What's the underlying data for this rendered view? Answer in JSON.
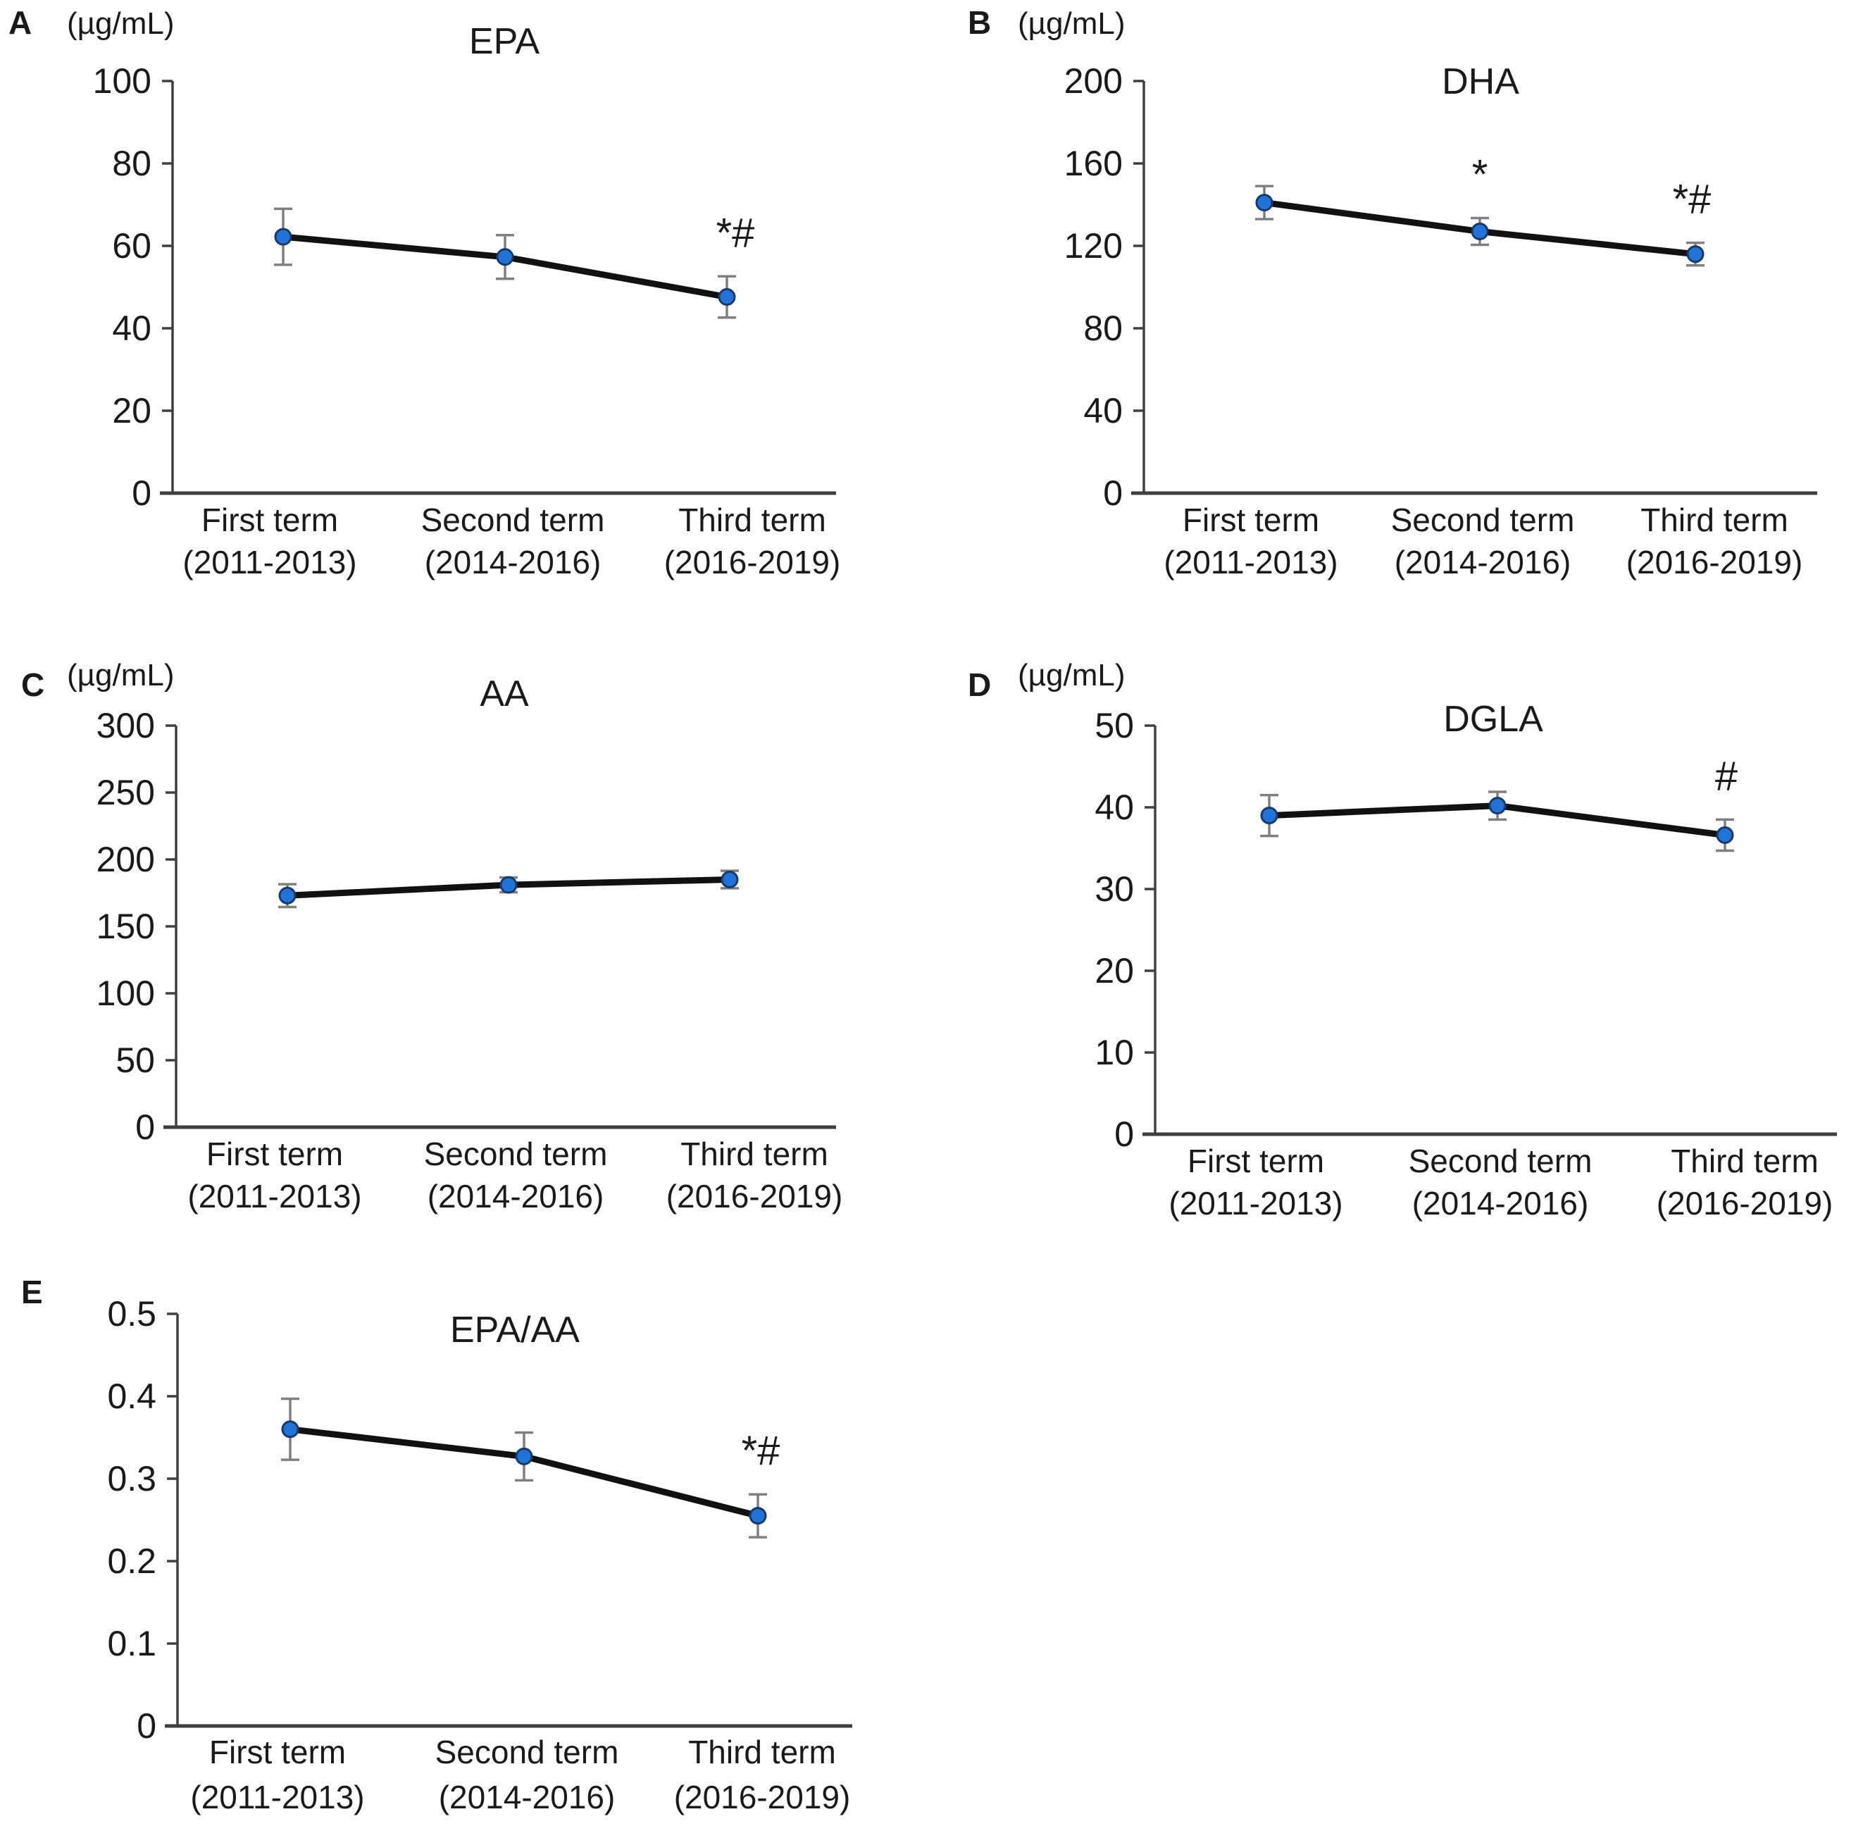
{
  "figure": {
    "kind": "five-panel line chart figure of serum fatty acid levels across three study terms",
    "background": "#ffffff"
  },
  "colors": {
    "marker_fill": "#2273d9",
    "marker_stroke": "#173a66",
    "line": "#111111",
    "error_bar": "#7f7f7f",
    "axis": "#3f3f3f",
    "text": "#1a1a1a"
  },
  "chart_data": [
    {
      "panel_label": "A",
      "type": "line",
      "title": "EPA",
      "unit": "(µg/mL)",
      "categories": [
        "First term",
        "Second term",
        "Third term"
      ],
      "category_sublabels": [
        "(2011-2013)",
        "(2014-2016)",
        "(2016-2019)"
      ],
      "values": [
        62.2,
        57.3,
        47.6
      ],
      "errors": [
        6.8,
        5.3,
        5.0
      ],
      "annotations": [
        "",
        "",
        "*#"
      ],
      "ylim": [
        0,
        100
      ],
      "ytick_labels": [
        "0",
        "20",
        "40",
        "60",
        "80",
        "100"
      ],
      "grid": false,
      "legend": false
    },
    {
      "panel_label": "B",
      "type": "line",
      "title": "DHA",
      "unit": "(µg/mL)",
      "categories": [
        "First term",
        "Second term",
        "Third term"
      ],
      "category_sublabels": [
        "(2011-2013)",
        "(2014-2016)",
        "(2016-2019)"
      ],
      "values": [
        141,
        127,
        116
      ],
      "errors": [
        8,
        6.5,
        5.5
      ],
      "annotations": [
        "",
        "*",
        "*#"
      ],
      "ylim": [
        0,
        200
      ],
      "ytick_labels": [
        "0",
        "40",
        "80",
        "120",
        "160",
        "200"
      ],
      "grid": false,
      "legend": false
    },
    {
      "panel_label": "C",
      "type": "line",
      "title": "AA",
      "unit": "(µg/mL)",
      "categories": [
        "First term",
        "Second term",
        "Third term"
      ],
      "category_sublabels": [
        "(2011-2013)",
        "(2014-2016)",
        "(2016-2019)"
      ],
      "values": [
        173,
        181,
        185
      ],
      "errors": [
        8.5,
        5.5,
        6.5
      ],
      "annotations": [
        "",
        "",
        ""
      ],
      "ylim": [
        0,
        300
      ],
      "ytick_labels": [
        "0",
        "50",
        "100",
        "150",
        "200",
        "250",
        "300"
      ],
      "grid": false,
      "legend": false
    },
    {
      "panel_label": "D",
      "type": "line",
      "title": "DGLA",
      "unit": "(µg/mL)",
      "categories": [
        "First term",
        "Second term",
        "Third term"
      ],
      "category_sublabels": [
        "(2011-2013)",
        "(2014-2016)",
        "(2016-2019)"
      ],
      "values": [
        39.0,
        40.2,
        36.6
      ],
      "errors": [
        2.5,
        1.7,
        1.9
      ],
      "annotations": [
        "",
        "",
        "#"
      ],
      "ylim": [
        0,
        50
      ],
      "ytick_labels": [
        "0",
        "10",
        "20",
        "30",
        "40",
        "50"
      ],
      "grid": false,
      "legend": false
    },
    {
      "panel_label": "E",
      "type": "line",
      "title": "EPA/AA",
      "unit": "",
      "categories": [
        "First term",
        "Second term",
        "Third term"
      ],
      "category_sublabels": [
        "(2011-2013)",
        "(2014-2016)",
        "(2016-2019)"
      ],
      "values": [
        0.36,
        0.327,
        0.255
      ],
      "errors": [
        0.037,
        0.029,
        0.026
      ],
      "annotations": [
        "",
        "",
        "*#"
      ],
      "ylim": [
        0,
        0.5
      ],
      "ytick_labels": [
        "0",
        "0.1",
        "0.2",
        "0.3",
        "0.4",
        "0.5"
      ],
      "grid": false,
      "legend": false
    }
  ]
}
